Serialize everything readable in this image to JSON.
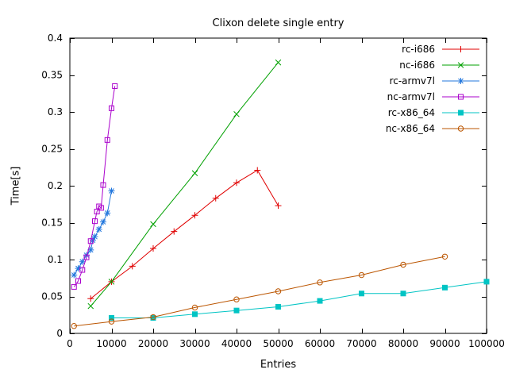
{
  "chart_data": {
    "type": "line",
    "title": "Clixon delete single entry",
    "xlabel": "Entries",
    "ylabel": "Time[s]",
    "xlim": [
      0,
      100000
    ],
    "ylim": [
      0,
      0.4
    ],
    "grid": false,
    "legend_position": "top-right",
    "xticks": {
      "values": [
        0,
        10000,
        20000,
        30000,
        40000,
        50000,
        60000,
        70000,
        80000,
        90000,
        100000
      ],
      "labels": [
        "0",
        "10000",
        "20000",
        "30000",
        "40000",
        "50000",
        "60000",
        "70000",
        "80000",
        "90000",
        "100000"
      ]
    },
    "yticks": {
      "values": [
        0,
        0.05,
        0.1,
        0.15,
        0.2,
        0.25,
        0.3,
        0.35,
        0.4
      ],
      "labels": [
        "0",
        "0.05",
        "0.1",
        "0.15",
        "0.2",
        "0.25",
        "0.3",
        "0.35",
        "0.4"
      ]
    },
    "series": [
      {
        "name": "rc-i686",
        "color": "#e00000",
        "marker": "plus",
        "points": [
          [
            5000,
            0.047
          ],
          [
            10000,
            0.07
          ],
          [
            15000,
            0.091
          ],
          [
            20000,
            0.115
          ],
          [
            25000,
            0.138
          ],
          [
            30000,
            0.16
          ],
          [
            35000,
            0.183
          ],
          [
            40000,
            0.204
          ],
          [
            45000,
            0.221
          ],
          [
            50000,
            0.173
          ]
        ]
      },
      {
        "name": "nc-i686",
        "color": "#00a000",
        "marker": "cross",
        "points": [
          [
            5000,
            0.037
          ],
          [
            10000,
            0.07
          ],
          [
            20000,
            0.148
          ],
          [
            30000,
            0.217
          ],
          [
            40000,
            0.297
          ],
          [
            50000,
            0.367
          ]
        ]
      },
      {
        "name": "rc-armv7l",
        "color": "#2277dd",
        "marker": "asterisk",
        "points": [
          [
            1000,
            0.079
          ],
          [
            2000,
            0.088
          ],
          [
            3000,
            0.097
          ],
          [
            4000,
            0.106
          ],
          [
            5000,
            0.113
          ],
          [
            5500,
            0.126
          ],
          [
            6000,
            0.131
          ],
          [
            7000,
            0.141
          ],
          [
            8000,
            0.151
          ],
          [
            9000,
            0.163
          ],
          [
            10000,
            0.193
          ]
        ]
      },
      {
        "name": "nc-armv7l",
        "color": "#aa00cc",
        "marker": "square-open",
        "points": [
          [
            1000,
            0.063
          ],
          [
            2000,
            0.071
          ],
          [
            3000,
            0.086
          ],
          [
            4000,
            0.103
          ],
          [
            5000,
            0.125
          ],
          [
            6000,
            0.152
          ],
          [
            6500,
            0.165
          ],
          [
            7000,
            0.172
          ],
          [
            7500,
            0.17
          ],
          [
            8000,
            0.201
          ],
          [
            9000,
            0.262
          ],
          [
            10000,
            0.305
          ],
          [
            10800,
            0.335
          ]
        ]
      },
      {
        "name": "rc-x86_64",
        "color": "#00c4c4",
        "marker": "square-filled",
        "points": [
          [
            10000,
            0.021
          ],
          [
            20000,
            0.021
          ],
          [
            30000,
            0.026
          ],
          [
            40000,
            0.031
          ],
          [
            50000,
            0.036
          ],
          [
            60000,
            0.044
          ],
          [
            70000,
            0.054
          ],
          [
            80000,
            0.054
          ],
          [
            90000,
            0.062
          ],
          [
            100000,
            0.07
          ]
        ]
      },
      {
        "name": "nc-x86_64",
        "color": "#bb5500",
        "marker": "circle-open",
        "points": [
          [
            1000,
            0.01
          ],
          [
            10000,
            0.016
          ],
          [
            20000,
            0.022
          ],
          [
            30000,
            0.035
          ],
          [
            40000,
            0.046
          ],
          [
            50000,
            0.057
          ],
          [
            60000,
            0.069
          ],
          [
            70000,
            0.079
          ],
          [
            80000,
            0.093
          ],
          [
            90000,
            0.104
          ]
        ]
      }
    ]
  }
}
